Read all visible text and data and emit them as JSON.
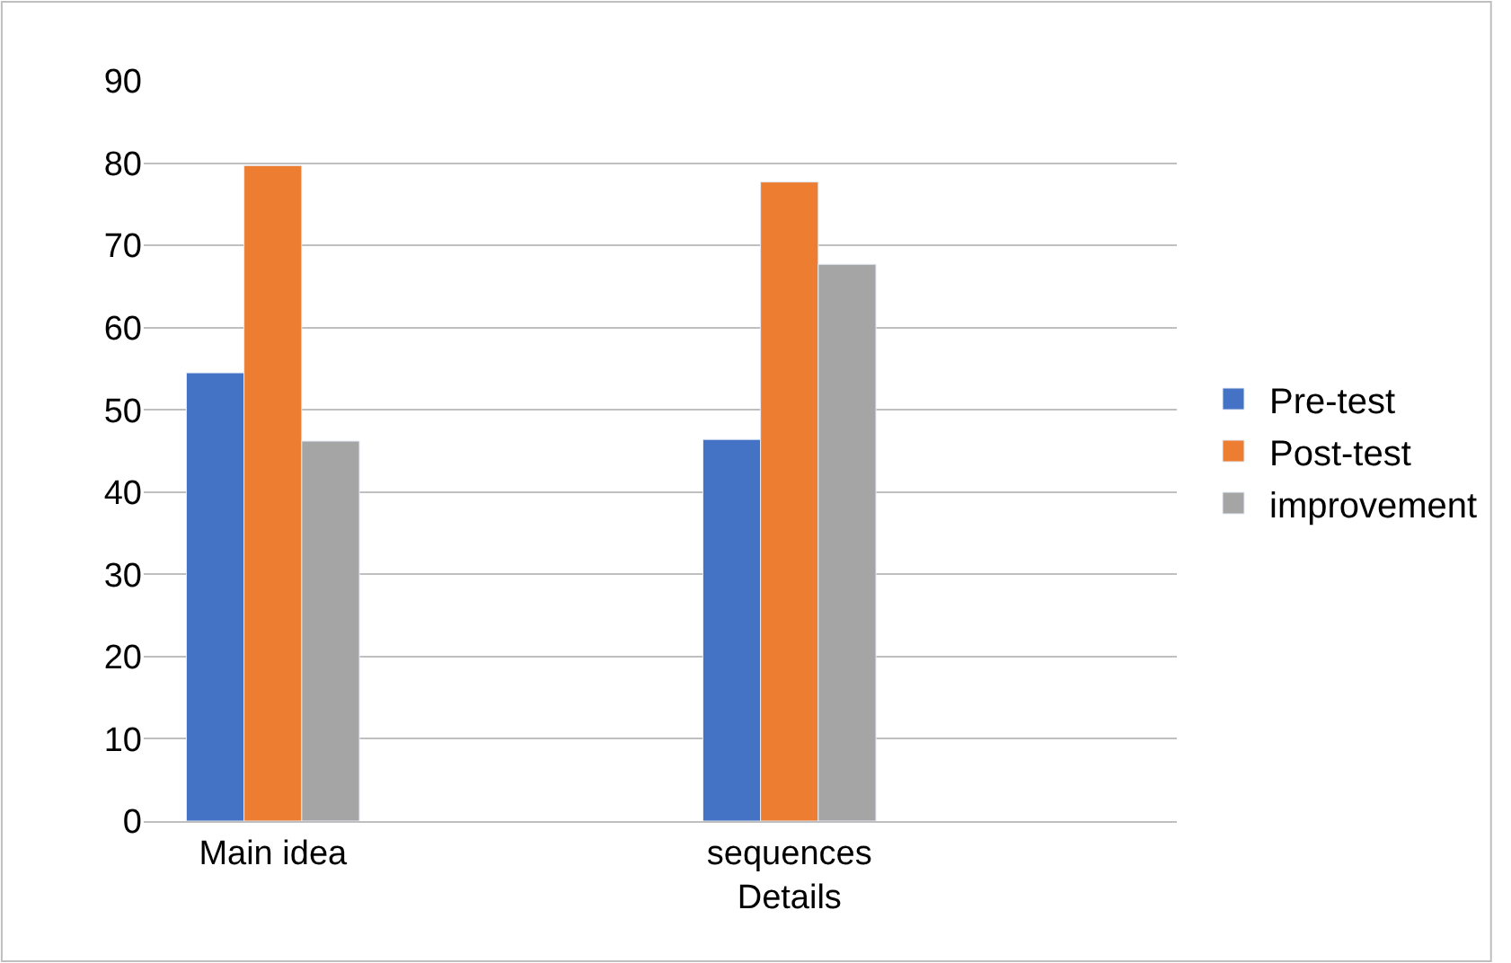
{
  "chart_data": {
    "type": "bar",
    "categories": [
      "Main idea",
      null,
      "sequences\nDetails",
      null
    ],
    "series": [
      {
        "name": "Pre-test",
        "color": "#4472c4",
        "values": [
          54.5,
          null,
          46.4,
          null
        ]
      },
      {
        "name": "Post-test",
        "color": "#ed7d31",
        "values": [
          79.7,
          null,
          77.7,
          null
        ]
      },
      {
        "name": "improvement",
        "color": "#a5a5a5",
        "values": [
          46.2,
          null,
          67.7,
          null
        ]
      }
    ],
    "ylim": [
      0,
      90
    ],
    "yticks": [
      0,
      10,
      20,
      30,
      40,
      50,
      60,
      70,
      80,
      90
    ],
    "grid": "y",
    "legend": "right"
  }
}
